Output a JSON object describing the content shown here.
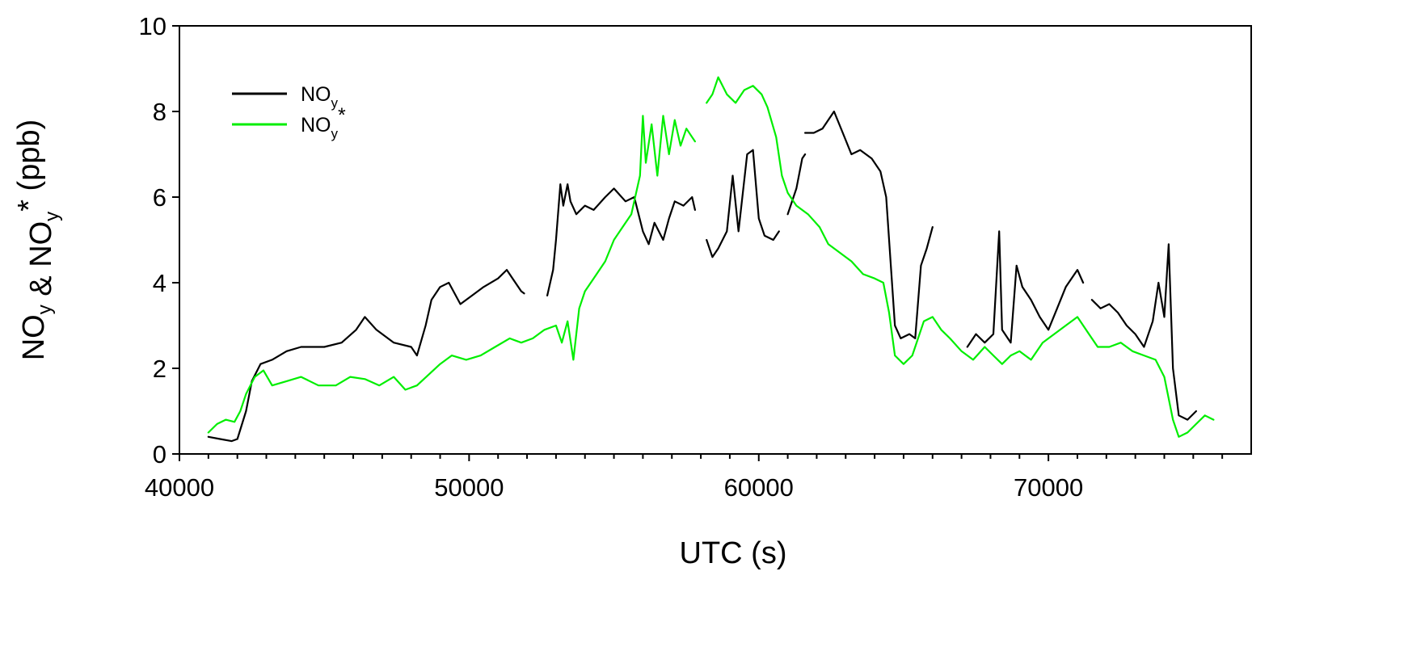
{
  "chart_data": {
    "type": "line",
    "title": "",
    "xlabel": "UTC (s)",
    "ylabel": {
      "parts": [
        {
          "text": "NO",
          "sub": "y"
        },
        {
          "text": " & "
        },
        {
          "text": "NO",
          "sub": "y",
          "sup": "*"
        },
        {
          "text": "  (ppb)"
        }
      ]
    },
    "xlim": [
      40000,
      77000
    ],
    "ylim": [
      0,
      10
    ],
    "xticks": [
      40000,
      50000,
      60000,
      70000
    ],
    "xtick_labels": [
      "40000",
      "50000",
      "60000",
      "70000"
    ],
    "yticks": [
      0,
      2,
      4,
      6,
      8,
      10
    ],
    "ytick_labels": [
      "0",
      "2",
      "4",
      "6",
      "8",
      "10"
    ],
    "grid": false,
    "legend_position": "top-left",
    "series": [
      {
        "name": "NOy",
        "legend": {
          "base": "NO",
          "sub": "y",
          "sup": ""
        },
        "color": "#000000",
        "segments": [
          [
            [
              41000,
              0.4
            ],
            [
              41400,
              0.35
            ],
            [
              41800,
              0.3
            ],
            [
              42000,
              0.35
            ],
            [
              42300,
              1.0
            ],
            [
              42500,
              1.7
            ],
            [
              42800,
              2.1
            ],
            [
              43200,
              2.2
            ],
            [
              43700,
              2.4
            ],
            [
              44200,
              2.5
            ],
            [
              45000,
              2.5
            ],
            [
              45600,
              2.6
            ],
            [
              46100,
              2.9
            ],
            [
              46400,
              3.2
            ],
            [
              46800,
              2.9
            ],
            [
              47400,
              2.6
            ],
            [
              48000,
              2.5
            ],
            [
              48200,
              2.3
            ],
            [
              48500,
              3.0
            ],
            [
              48700,
              3.6
            ],
            [
              49000,
              3.9
            ],
            [
              49300,
              4.0
            ],
            [
              49700,
              3.5
            ],
            [
              50100,
              3.7
            ],
            [
              50500,
              3.9
            ],
            [
              51000,
              4.1
            ],
            [
              51300,
              4.3
            ],
            [
              51600,
              4.0
            ],
            [
              51800,
              3.8
            ],
            [
              51900,
              3.75
            ]
          ],
          [
            [
              52700,
              3.7
            ],
            [
              52900,
              4.3
            ],
            [
              53000,
              5.0
            ],
            [
              53150,
              6.3
            ],
            [
              53250,
              5.8
            ],
            [
              53400,
              6.3
            ],
            [
              53500,
              5.9
            ],
            [
              53700,
              5.6
            ],
            [
              54000,
              5.8
            ],
            [
              54300,
              5.7
            ],
            [
              54700,
              6.0
            ],
            [
              55000,
              6.2
            ],
            [
              55400,
              5.9
            ],
            [
              55700,
              6.0
            ],
            [
              56000,
              5.2
            ],
            [
              56200,
              4.9
            ],
            [
              56400,
              5.4
            ],
            [
              56700,
              5.0
            ],
            [
              56900,
              5.5
            ],
            [
              57100,
              5.9
            ],
            [
              57400,
              5.8
            ],
            [
              57700,
              6.0
            ],
            [
              57800,
              5.7
            ]
          ],
          [
            [
              58200,
              5.0
            ],
            [
              58400,
              4.6
            ],
            [
              58600,
              4.8
            ],
            [
              58900,
              5.2
            ],
            [
              59100,
              6.5
            ],
            [
              59300,
              5.2
            ],
            [
              59600,
              7.0
            ],
            [
              59800,
              7.1
            ],
            [
              60000,
              5.5
            ],
            [
              60200,
              5.1
            ],
            [
              60500,
              5.0
            ],
            [
              60700,
              5.2
            ]
          ],
          [
            [
              61000,
              5.6
            ],
            [
              61300,
              6.2
            ],
            [
              61500,
              6.9
            ],
            [
              61600,
              7.0
            ]
          ],
          [
            [
              61600,
              7.5
            ],
            [
              61900,
              7.5
            ],
            [
              62200,
              7.6
            ],
            [
              62600,
              8.0
            ],
            [
              62900,
              7.5
            ],
            [
              63200,
              7.0
            ],
            [
              63500,
              7.1
            ],
            [
              63900,
              6.9
            ],
            [
              64200,
              6.6
            ],
            [
              64400,
              6.0
            ],
            [
              64500,
              5.0
            ],
            [
              64700,
              3.0
            ],
            [
              64900,
              2.7
            ],
            [
              65200,
              2.8
            ],
            [
              65400,
              2.7
            ],
            [
              65600,
              4.4
            ],
            [
              65800,
              4.8
            ],
            [
              66000,
              5.3
            ]
          ],
          [
            [
              67200,
              2.5
            ],
            [
              67500,
              2.8
            ],
            [
              67800,
              2.6
            ],
            [
              68100,
              2.8
            ],
            [
              68300,
              5.2
            ],
            [
              68400,
              2.9
            ],
            [
              68700,
              2.6
            ],
            [
              68900,
              4.4
            ],
            [
              69100,
              3.9
            ],
            [
              69400,
              3.6
            ],
            [
              69700,
              3.2
            ],
            [
              70000,
              2.9
            ],
            [
              70300,
              3.4
            ],
            [
              70600,
              3.9
            ],
            [
              71000,
              4.3
            ],
            [
              71200,
              4.0
            ]
          ],
          [
            [
              71500,
              3.6
            ],
            [
              71800,
              3.4
            ],
            [
              72100,
              3.5
            ],
            [
              72400,
              3.3
            ],
            [
              72700,
              3.0
            ],
            [
              73000,
              2.8
            ],
            [
              73300,
              2.5
            ],
            [
              73600,
              3.1
            ],
            [
              73800,
              4.0
            ],
            [
              74000,
              3.2
            ],
            [
              74150,
              4.9
            ],
            [
              74300,
              2.0
            ],
            [
              74500,
              0.9
            ],
            [
              74800,
              0.8
            ],
            [
              75100,
              1.0
            ]
          ]
        ]
      },
      {
        "name": "NOy*",
        "legend": {
          "base": "NO",
          "sub": "y",
          "sup": "*"
        },
        "color": "#00ee00",
        "segments": [
          [
            [
              41000,
              0.5
            ],
            [
              41300,
              0.7
            ],
            [
              41600,
              0.8
            ],
            [
              41900,
              0.75
            ],
            [
              42100,
              1.0
            ],
            [
              42300,
              1.4
            ],
            [
              42600,
              1.8
            ],
            [
              42900,
              1.95
            ],
            [
              43200,
              1.6
            ],
            [
              43700,
              1.7
            ],
            [
              44200,
              1.8
            ],
            [
              44800,
              1.6
            ],
            [
              45400,
              1.6
            ],
            [
              45900,
              1.8
            ],
            [
              46400,
              1.75
            ],
            [
              46900,
              1.6
            ],
            [
              47400,
              1.8
            ],
            [
              47800,
              1.5
            ],
            [
              48200,
              1.6
            ],
            [
              48600,
              1.85
            ],
            [
              49000,
              2.1
            ],
            [
              49400,
              2.3
            ],
            [
              49900,
              2.2
            ],
            [
              50400,
              2.3
            ],
            [
              50900,
              2.5
            ],
            [
              51400,
              2.7
            ],
            [
              51800,
              2.6
            ],
            [
              52200,
              2.7
            ],
            [
              52600,
              2.9
            ],
            [
              53000,
              3.0
            ],
            [
              53200,
              2.6
            ],
            [
              53400,
              3.1
            ],
            [
              53600,
              2.2
            ],
            [
              53800,
              3.4
            ],
            [
              54000,
              3.8
            ],
            [
              54300,
              4.1
            ],
            [
              54700,
              4.5
            ],
            [
              55000,
              5.0
            ],
            [
              55300,
              5.3
            ],
            [
              55600,
              5.6
            ],
            [
              55900,
              6.5
            ],
            [
              56000,
              7.9
            ],
            [
              56100,
              6.8
            ],
            [
              56300,
              7.7
            ],
            [
              56500,
              6.5
            ],
            [
              56700,
              7.9
            ],
            [
              56900,
              7.0
            ],
            [
              57100,
              7.8
            ],
            [
              57300,
              7.2
            ],
            [
              57500,
              7.6
            ],
            [
              57700,
              7.4
            ],
            [
              57800,
              7.3
            ]
          ],
          [
            [
              58200,
              8.2
            ],
            [
              58400,
              8.4
            ],
            [
              58600,
              8.8
            ],
            [
              58900,
              8.4
            ],
            [
              59200,
              8.2
            ],
            [
              59500,
              8.5
            ],
            [
              59800,
              8.6
            ],
            [
              60100,
              8.4
            ],
            [
              60300,
              8.1
            ],
            [
              60600,
              7.4
            ],
            [
              60800,
              6.5
            ],
            [
              61000,
              6.1
            ],
            [
              61300,
              5.8
            ],
            [
              61700,
              5.6
            ],
            [
              62100,
              5.3
            ],
            [
              62400,
              4.9
            ],
            [
              62800,
              4.7
            ],
            [
              63200,
              4.5
            ],
            [
              63600,
              4.2
            ],
            [
              64000,
              4.1
            ],
            [
              64300,
              4.0
            ],
            [
              64500,
              3.3
            ],
            [
              64700,
              2.3
            ],
            [
              65000,
              2.1
            ],
            [
              65300,
              2.3
            ],
            [
              65700,
              3.1
            ],
            [
              66000,
              3.2
            ],
            [
              66300,
              2.9
            ],
            [
              66600,
              2.7
            ],
            [
              67000,
              2.4
            ],
            [
              67400,
              2.2
            ],
            [
              67800,
              2.5
            ],
            [
              68100,
              2.3
            ],
            [
              68400,
              2.1
            ],
            [
              68700,
              2.3
            ],
            [
              69000,
              2.4
            ],
            [
              69400,
              2.2
            ],
            [
              69800,
              2.6
            ],
            [
              70200,
              2.8
            ],
            [
              70600,
              3.0
            ],
            [
              71000,
              3.2
            ],
            [
              71400,
              2.8
            ],
            [
              71700,
              2.5
            ],
            [
              72100,
              2.5
            ],
            [
              72500,
              2.6
            ],
            [
              72900,
              2.4
            ],
            [
              73300,
              2.3
            ],
            [
              73700,
              2.2
            ],
            [
              74000,
              1.8
            ],
            [
              74300,
              0.8
            ],
            [
              74500,
              0.4
            ],
            [
              74800,
              0.5
            ],
            [
              75100,
              0.7
            ],
            [
              75400,
              0.9
            ],
            [
              75700,
              0.8
            ]
          ]
        ]
      }
    ]
  }
}
